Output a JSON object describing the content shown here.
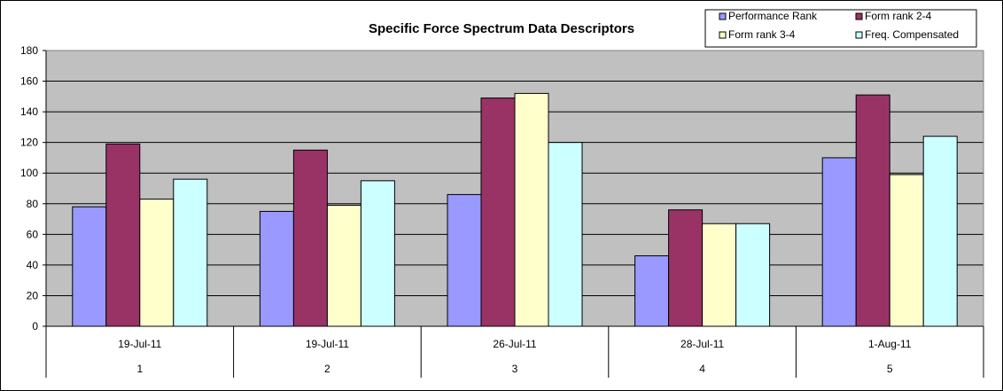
{
  "chart_data": {
    "type": "bar",
    "title": "Specific Force Spectrum Data Descriptors",
    "categories": [
      "19-Jul-11",
      "19-Jul-11",
      "26-Jul-11",
      "28-Jul-11",
      "1-Aug-11"
    ],
    "category_indices": [
      "1",
      "2",
      "3",
      "4",
      "5"
    ],
    "ylim": [
      0,
      180
    ],
    "yticks": [
      "0",
      "20",
      "40",
      "60",
      "80",
      "100",
      "120",
      "140",
      "160",
      "180"
    ],
    "grid": true,
    "legend_position": "top-right",
    "series": [
      {
        "name": "Performance Rank",
        "color": "#9999ff",
        "values": [
          78,
          75,
          86,
          46,
          110
        ]
      },
      {
        "name": "Form rank 2-4",
        "color": "#993366",
        "values": [
          119,
          115,
          149,
          76,
          151
        ]
      },
      {
        "name": "Form rank 3-4",
        "color": "#ffffcc",
        "values": [
          83,
          79,
          152,
          67,
          99
        ]
      },
      {
        "name": "Freq. Compensated",
        "color": "#ccffff",
        "values": [
          96,
          95,
          120,
          67,
          124
        ]
      }
    ],
    "plot_background": "#c0c0c0"
  }
}
